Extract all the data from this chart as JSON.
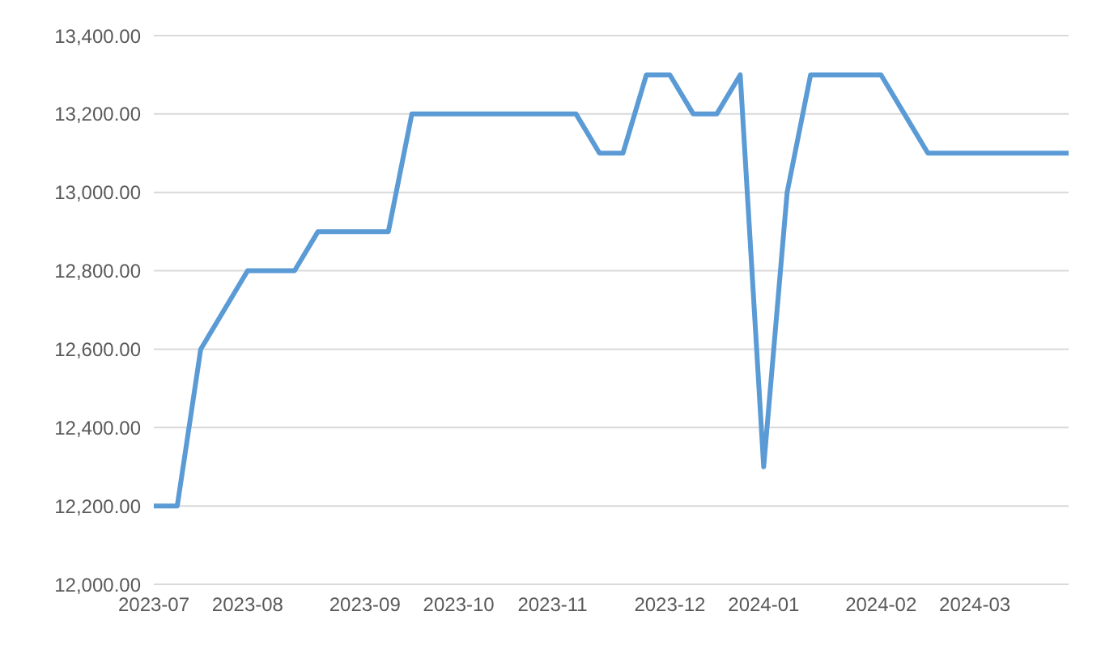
{
  "chart_data": {
    "type": "line",
    "categories": [
      "2023-07",
      null,
      null,
      null,
      "2023-08",
      null,
      null,
      null,
      null,
      "2023-09",
      null,
      null,
      null,
      "2023-10",
      null,
      null,
      null,
      "2023-11",
      null,
      null,
      null,
      null,
      "2023-12",
      null,
      null,
      null,
      "2024-01",
      null,
      null,
      null,
      null,
      "2024-02",
      null,
      null,
      null,
      "2024-03",
      null,
      null,
      null,
      null
    ],
    "series": [
      {
        "color": "#5b9bd5",
        "values": [
          12200,
          12200,
          12600,
          12700,
          12800,
          12800,
          12800,
          12900,
          12900,
          12900,
          12900,
          13200,
          13200,
          13200,
          13200,
          13200,
          13200,
          13200,
          13200,
          13100,
          13100,
          13300,
          13300,
          13200,
          13200,
          13300,
          12300,
          13000,
          13300,
          13300,
          13300,
          13300,
          13200,
          13100,
          13100,
          13100,
          13100,
          13100,
          13100,
          13100
        ]
      }
    ],
    "ylim": [
      12000,
      13400
    ],
    "yticks": [
      {
        "value": 12000,
        "label": "12,000.00"
      },
      {
        "value": 12200,
        "label": "12,200.00"
      },
      {
        "value": 12400,
        "label": "12,400.00"
      },
      {
        "value": 12600,
        "label": "12,600.00"
      },
      {
        "value": 12800,
        "label": "12,800.00"
      },
      {
        "value": 13000,
        "label": "13,000.00"
      },
      {
        "value": 13200,
        "label": "13,200.00"
      },
      {
        "value": 13400,
        "label": "13,400.00"
      }
    ],
    "grid": "y",
    "legend": false,
    "marker": "none",
    "line_style": "solid"
  }
}
